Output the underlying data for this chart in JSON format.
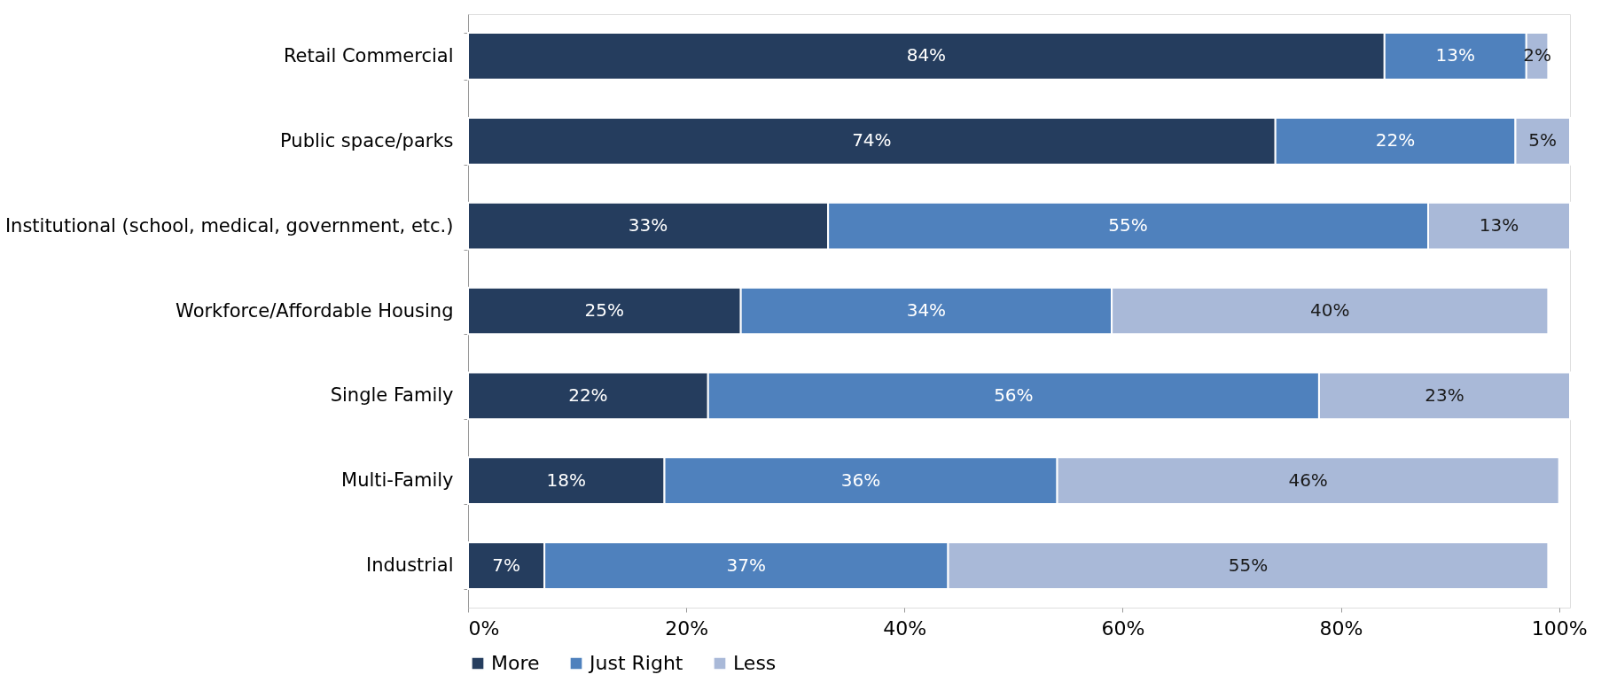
{
  "chart_data": {
    "type": "bar",
    "orientation": "horizontal",
    "stacked": true,
    "grid": false,
    "legend": "bottom",
    "categories": [
      "Retail Commercial",
      "Public space/parks",
      "Institutional (school, medical, government, etc.)",
      "Workforce/Affordable Housing",
      "Single Family",
      "Multi-Family",
      "Industrial"
    ],
    "series": [
      {
        "name": "More",
        "color": "#253d5e",
        "values": [
          84,
          74,
          33,
          25,
          22,
          18,
          7
        ],
        "value_labels": [
          "84%",
          "74%",
          "33%",
          "25%",
          "22%",
          "18%",
          "7%"
        ]
      },
      {
        "name": "Just Right",
        "color": "#4f81bd",
        "values": [
          13,
          22,
          55,
          34,
          56,
          36,
          37
        ],
        "value_labels": [
          "13%",
          "22%",
          "55%",
          "34%",
          "56%",
          "36%",
          "37%"
        ]
      },
      {
        "name": "Less",
        "color": "#a9b9d8",
        "values": [
          2,
          5,
          13,
          40,
          23,
          46,
          55
        ],
        "value_labels": [
          "2%",
          "5%",
          "13%",
          "40%",
          "23%",
          "46%",
          "55%"
        ]
      }
    ],
    "xlim": [
      0,
      101
    ],
    "xticks": [
      {
        "value": 0,
        "label": "0%"
      },
      {
        "value": 20,
        "label": "20%"
      },
      {
        "value": 40,
        "label": "40%"
      },
      {
        "value": 60,
        "label": "60%"
      },
      {
        "value": 80,
        "label": "80%"
      },
      {
        "value": 100,
        "label": "100%"
      }
    ]
  }
}
